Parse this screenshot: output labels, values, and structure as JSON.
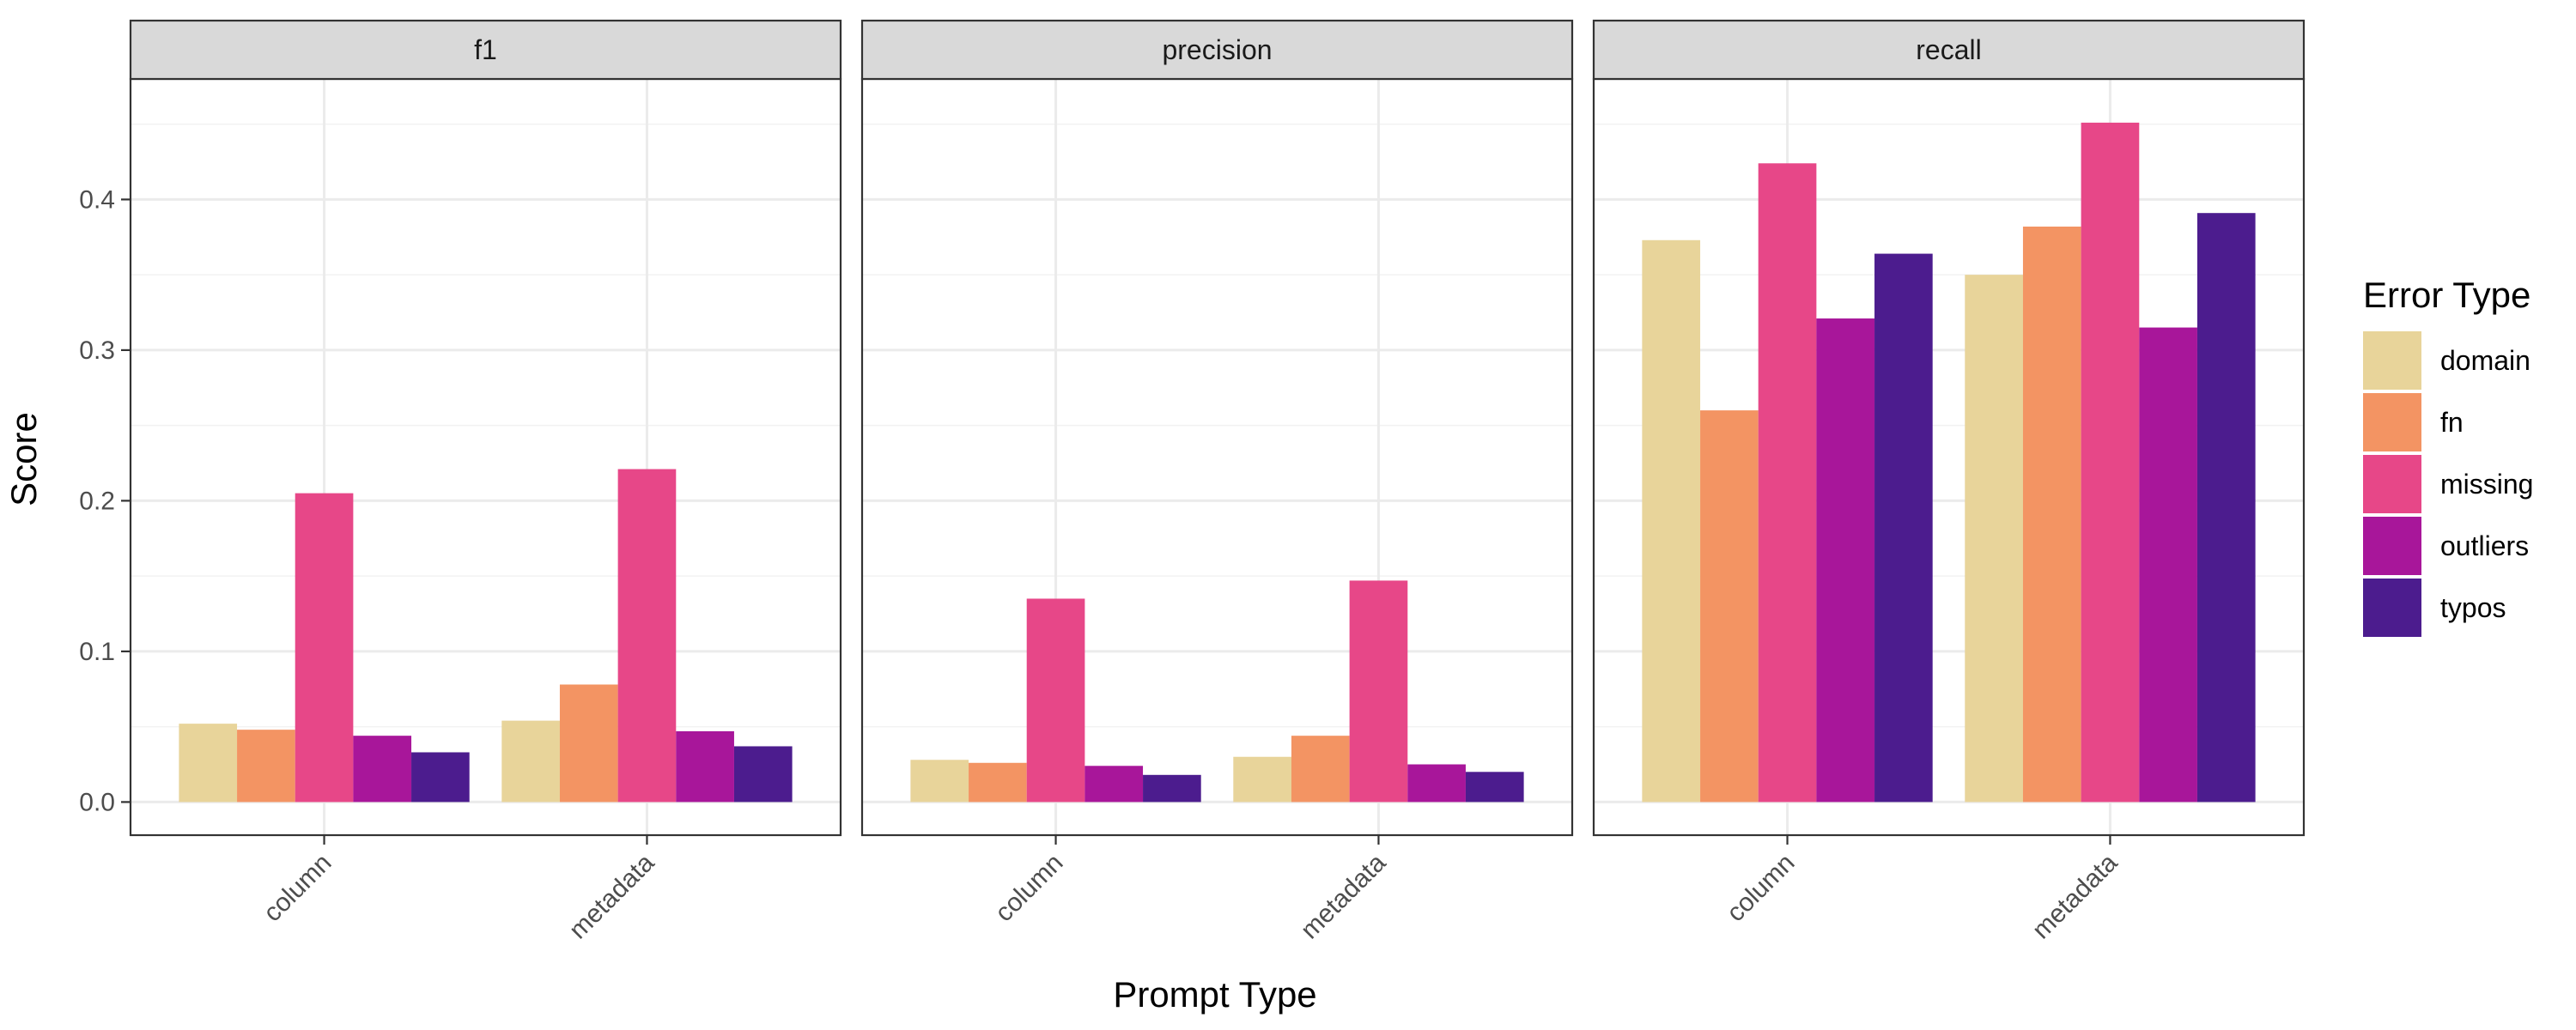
{
  "chart_data": {
    "type": "bar",
    "facets": [
      "f1",
      "precision",
      "recall"
    ],
    "categories": [
      "column",
      "metadata"
    ],
    "xlabel": "Prompt Type",
    "ylabel": "Score",
    "ylim": [
      -0.022,
      0.48
    ],
    "yticks": [
      0.0,
      0.1,
      0.2,
      0.3,
      0.4
    ],
    "ytick_labels": [
      "0.0",
      "0.1",
      "0.2",
      "0.3",
      "0.4"
    ],
    "legend": {
      "title": "Error Type",
      "position": "right"
    },
    "grid": true,
    "series": [
      {
        "name": "domain",
        "color": "#E8D49A",
        "values": {
          "f1": [
            0.052,
            0.054
          ],
          "precision": [
            0.028,
            0.03
          ],
          "recall": [
            0.373,
            0.35
          ]
        }
      },
      {
        "name": "fn",
        "color": "#F39463",
        "values": {
          "f1": [
            0.048,
            0.078
          ],
          "precision": [
            0.026,
            0.044
          ],
          "recall": [
            0.26,
            0.382
          ]
        }
      },
      {
        "name": "missing",
        "color": "#E74788",
        "values": {
          "f1": [
            0.205,
            0.221
          ],
          "precision": [
            0.135,
            0.147
          ],
          "recall": [
            0.424,
            0.451
          ]
        }
      },
      {
        "name": "outliers",
        "color": "#A8169A",
        "values": {
          "f1": [
            0.044,
            0.047
          ],
          "precision": [
            0.024,
            0.025
          ],
          "recall": [
            0.321,
            0.315
          ]
        }
      },
      {
        "name": "typos",
        "color": "#4C1C8E",
        "values": {
          "f1": [
            0.033,
            0.037
          ],
          "precision": [
            0.018,
            0.02
          ],
          "recall": [
            0.364,
            0.391
          ]
        }
      }
    ]
  }
}
